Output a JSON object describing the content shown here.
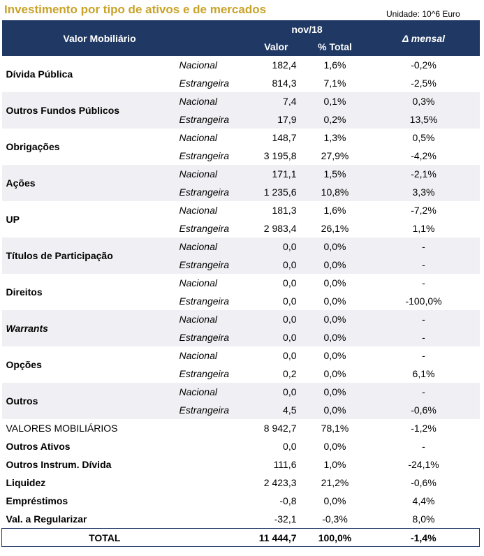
{
  "title": "Investimento por tipo de ativos e de mercados",
  "unit": "Unidade: 10^6 Euro",
  "header": {
    "col_asset": "Valor Mobiliário",
    "period": "nov/18",
    "col_valor": "Valor",
    "col_pct": "% Total",
    "col_delta": "Δ mensal"
  },
  "groups": [
    {
      "name": "Dívida Pública",
      "rows": [
        {
          "market": "Nacional",
          "valor": "182,4",
          "pct": "1,6%",
          "delta": "-0,2%"
        },
        {
          "market": "Estrangeira",
          "valor": "814,3",
          "pct": "7,1%",
          "delta": "-2,5%"
        }
      ]
    },
    {
      "name": "Outros Fundos Públicos",
      "rows": [
        {
          "market": "Nacional",
          "valor": "7,4",
          "pct": "0,1%",
          "delta": "0,3%"
        },
        {
          "market": "Estrangeira",
          "valor": "17,9",
          "pct": "0,2%",
          "delta": "13,5%"
        }
      ]
    },
    {
      "name": "Obrigações",
      "rows": [
        {
          "market": "Nacional",
          "valor": "148,7",
          "pct": "1,3%",
          "delta": "0,5%"
        },
        {
          "market": "Estrangeira",
          "valor": "3 195,8",
          "pct": "27,9%",
          "delta": "-4,2%"
        }
      ]
    },
    {
      "name": "Ações",
      "rows": [
        {
          "market": "Nacional",
          "valor": "171,1",
          "pct": "1,5%",
          "delta": "-2,1%"
        },
        {
          "market": "Estrangeira",
          "valor": "1 235,6",
          "pct": "10,8%",
          "delta": "3,3%"
        }
      ]
    },
    {
      "name": "UP",
      "rows": [
        {
          "market": "Nacional",
          "valor": "181,3",
          "pct": "1,6%",
          "delta": "-7,2%"
        },
        {
          "market": "Estrangeira",
          "valor": "2 983,4",
          "pct": "26,1%",
          "delta": "1,1%"
        }
      ]
    },
    {
      "name": "Títulos de Participação",
      "rows": [
        {
          "market": "Nacional",
          "valor": "0,0",
          "pct": "0,0%",
          "delta": "-"
        },
        {
          "market": "Estrangeira",
          "valor": "0,0",
          "pct": "0,0%",
          "delta": "-"
        }
      ]
    },
    {
      "name": "Direitos",
      "rows": [
        {
          "market": "Nacional",
          "valor": "0,0",
          "pct": "0,0%",
          "delta": "-"
        },
        {
          "market": "Estrangeira",
          "valor": "0,0",
          "pct": "0,0%",
          "delta": "-100,0%"
        }
      ]
    },
    {
      "name": "Warrants",
      "italic": true,
      "rows": [
        {
          "market": "Nacional",
          "valor": "0,0",
          "pct": "0,0%",
          "delta": "-"
        },
        {
          "market": "Estrangeira",
          "valor": "0,0",
          "pct": "0,0%",
          "delta": "-"
        }
      ]
    },
    {
      "name": "Opções",
      "rows": [
        {
          "market": "Nacional",
          "valor": "0,0",
          "pct": "0,0%",
          "delta": "-"
        },
        {
          "market": "Estrangeira",
          "valor": "0,2",
          "pct": "0,0%",
          "delta": "6,1%"
        }
      ]
    },
    {
      "name": "Outros",
      "rows": [
        {
          "market": "Nacional",
          "valor": "0,0",
          "pct": "0,0%",
          "delta": "-"
        },
        {
          "market": "Estrangeira",
          "valor": "4,5",
          "pct": "0,0%",
          "delta": "-0,6%"
        }
      ]
    }
  ],
  "summary": [
    {
      "name": "VALORES MOBILIÁRIOS",
      "valor": "8 942,7",
      "pct": "78,1%",
      "delta": "-1,2%",
      "bold": false
    },
    {
      "name": "Outros Ativos",
      "valor": "0,0",
      "pct": "0,0%",
      "delta": "-",
      "bold": true
    },
    {
      "name": "Outros Instrum. Dívida",
      "valor": "111,6",
      "pct": "1,0%",
      "delta": "-24,1%",
      "bold": true
    },
    {
      "name": "Liquidez",
      "valor": "2 423,3",
      "pct": "21,2%",
      "delta": "-0,6%",
      "bold": true
    },
    {
      "name": "Empréstimos",
      "valor": "-0,8",
      "pct": "0,0%",
      "delta": "4,4%",
      "bold": true
    },
    {
      "name": "Val. a Regularizar",
      "valor": "-32,1",
      "pct": "-0,3%",
      "delta": "8,0%",
      "bold": true
    }
  ],
  "total": {
    "label": "TOTAL",
    "valor": "11 444,7",
    "pct": "100,0%",
    "delta": "-1,4%"
  },
  "colors": {
    "title": "#c9a227",
    "header_bg": "#1f3864",
    "shade": "#f0f0f4"
  }
}
